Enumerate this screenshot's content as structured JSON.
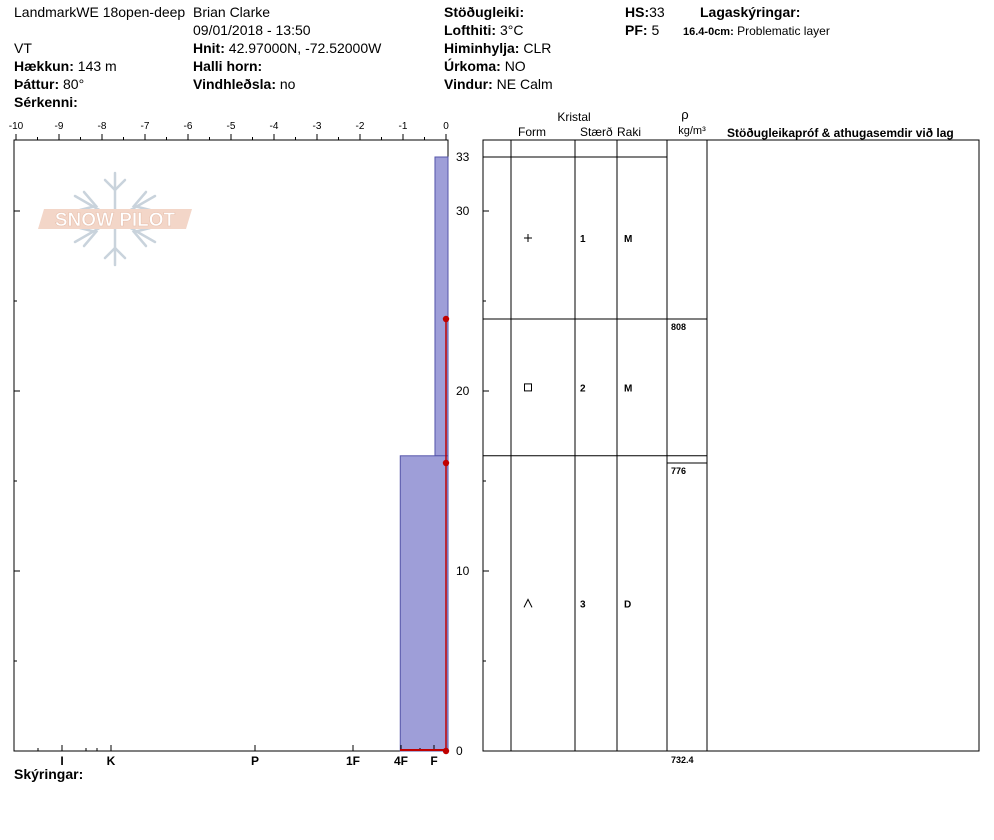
{
  "header": {
    "location": "LandmarkWE 18open-deep",
    "state": "VT",
    "elevation_label": "Hækkun:",
    "elevation": "143 m",
    "aspect_label": "Þáttur:",
    "aspect": "80°",
    "specifics_label": "Sérkenni:",
    "observer": "Brian Clarke",
    "datetime": "09/01/2018 - 13:50",
    "coords_label": "Hnit:",
    "coords": "42.97000N, -72.52000W",
    "slope_label": "Halli horn:",
    "wind_loading_label": "Vindhleðsla:",
    "wind_loading": "no",
    "stability_label": "Stöðugleiki:",
    "air_temp_label": "Lofthiti:",
    "air_temp": "3°C",
    "sky_label": "Himinhylja:",
    "sky": "CLR",
    "precip_label": "Úrkoma:",
    "precip": "NO",
    "wind_label": "Vindur:",
    "wind": "NE Calm",
    "hs_label": "HS:",
    "hs": "33",
    "pf_label": "PF:",
    "pf": "5",
    "layer_notes_label": "Lagaskýringar:",
    "layer_note_depth": "16.4-0cm:",
    "layer_note_text": "Problematic layer",
    "legend_label": "Skýringar:"
  },
  "logo_text": "SNOW PILOT",
  "table": {
    "crystal_label": "Kristal",
    "form_label": "Form",
    "size_label": "Stærð",
    "moisture_label": "Raki",
    "rho_label": "ρ",
    "density_unit": "kg/m³",
    "tests_label": "Stöðugleikapróf & athugasemdir við lag",
    "rows": [
      {
        "top": 33,
        "bottom": 24,
        "form_symbol": "+",
        "size": "1",
        "moisture": "M"
      },
      {
        "top": 24,
        "bottom": 16.4,
        "form_symbol": "□",
        "size": "2",
        "moisture": "M"
      },
      {
        "top": 16.4,
        "bottom": 0,
        "form_symbol": "^",
        "size": "3",
        "moisture": "D"
      }
    ],
    "densities": [
      {
        "height": 24,
        "value": "808"
      },
      {
        "height": 16,
        "value": "776"
      },
      {
        "height": 0,
        "value": "732.4"
      }
    ]
  },
  "chart_data": {
    "type": "area",
    "title": "",
    "xlabel": "",
    "ylabel": "",
    "temp_axis": {
      "min": -10,
      "max": 0,
      "ticks": [
        "-10",
        "-9",
        "-8",
        "-7",
        "-6",
        "-5",
        "-4",
        "-3",
        "-2",
        "-1",
        "0"
      ]
    },
    "hardness_axis": {
      "labels": [
        "I",
        "K",
        "P",
        "1F",
        "4F",
        "F"
      ]
    },
    "y_axis": {
      "min": 0,
      "max": 34,
      "ticks": [
        "0",
        "10",
        "20",
        "30",
        "33"
      ]
    },
    "hardness_profile": [
      {
        "top": 33,
        "bottom": 16.4,
        "hardness_index": 0.3
      },
      {
        "top": 16.4,
        "bottom": 0,
        "hardness_index": 1.1
      }
    ],
    "temperature_points": [
      {
        "height": 24,
        "temp": 0
      },
      {
        "height": 16,
        "temp": 0
      },
      {
        "height": 0,
        "temp": 0
      }
    ],
    "colors": {
      "hardness_fill": "#9e9ed8",
      "hardness_stroke": "#5555aa",
      "temp_point": "#c00000"
    }
  }
}
